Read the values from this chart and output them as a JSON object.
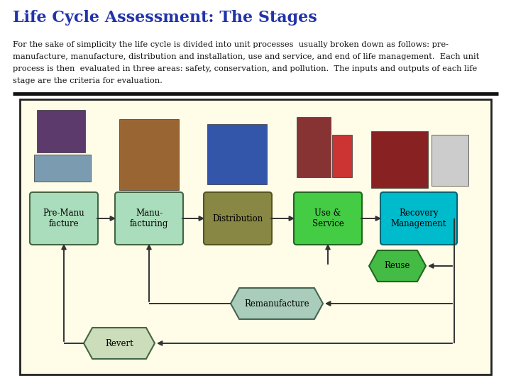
{
  "title": "Life Cycle Assessment: The Stages",
  "title_color": "#2233aa",
  "title_fontsize": 16,
  "body_fontsize": 8.2,
  "bg_color": "#ffffff",
  "diagram_bg": "#fffce8",
  "diagram_border": "#222222",
  "box_pre": {
    "label": "Pre-Manu\nfacture",
    "fc": "#aaddbb",
    "ec": "#446644"
  },
  "box_mfg": {
    "label": "Manu-\nfacturing",
    "fc": "#aaddbb",
    "ec": "#446644"
  },
  "box_dist": {
    "label": "Distribution",
    "fc": "#888844",
    "ec": "#555522"
  },
  "box_use": {
    "label": "Use &\nService",
    "fc": "#44cc44",
    "ec": "#226622"
  },
  "box_rec": {
    "label": "Recovery\nManagement",
    "fc": "#00bbcc",
    "ec": "#006677"
  },
  "box_reuse": {
    "label": "Reuse",
    "fc": "#44bb44",
    "ec": "#226622"
  },
  "box_remfg": {
    "label": "Remanufacture",
    "fc": "#aaccbb",
    "ec": "#446655"
  },
  "box_revert": {
    "label": "Revert",
    "fc": "#ccddbb",
    "ec": "#446644"
  },
  "arrow_color": "#333333",
  "line_color": "#333333"
}
